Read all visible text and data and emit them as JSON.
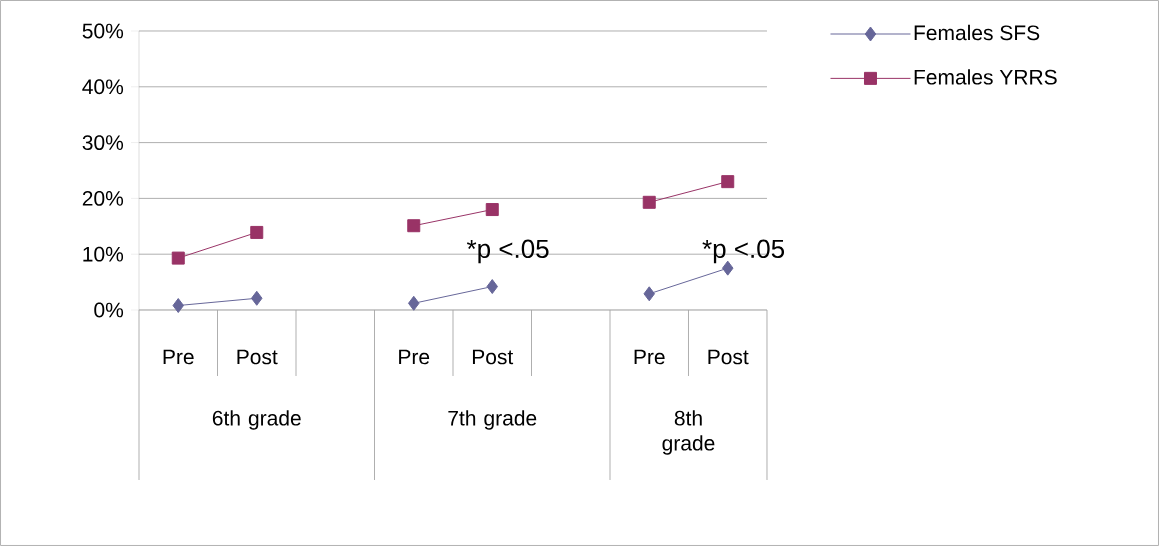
{
  "chart_data": {
    "type": "line",
    "categories": [
      "Pre",
      "Post",
      null,
      "Pre",
      "Post",
      null,
      "Pre",
      "Post"
    ],
    "series": [
      {
        "name": "Females SFS",
        "color": "#666699",
        "marker": "diamond",
        "values": [
          0.8,
          2.1,
          null,
          1.2,
          4.2,
          null,
          2.9,
          7.5
        ]
      },
      {
        "name": "Females YRRS",
        "color": "#993366",
        "marker": "square",
        "values": [
          9.3,
          13.9,
          null,
          15.1,
          18.0,
          null,
          19.3,
          23.0
        ]
      }
    ],
    "ylim": [
      0,
      50
    ],
    "yticks": [
      {
        "value": 0,
        "label": "0%"
      },
      {
        "value": 10,
        "label": "10%"
      },
      {
        "value": 20,
        "label": "20%"
      },
      {
        "value": 30,
        "label": "30%"
      },
      {
        "value": 40,
        "label": "40%"
      },
      {
        "value": 50,
        "label": "50%"
      }
    ],
    "annotations": [
      "6th grade",
      "7th grade",
      "8th grade",
      "*p <.05",
      "*p <.05"
    ],
    "grid": "y",
    "legend": "top right",
    "line_style": "solid"
  }
}
